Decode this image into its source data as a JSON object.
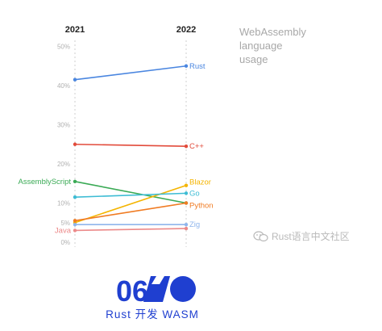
{
  "chart_data": {
    "type": "line",
    "title": "WebAssembly language usage",
    "title_lines": [
      "WebAssembly",
      "language",
      "usage"
    ],
    "x": [
      "2021",
      "2022"
    ],
    "ylim": [
      0,
      50
    ],
    "yticks": [
      "0%",
      "5%",
      "10%",
      "20%",
      "30%",
      "40%",
      "50%"
    ],
    "grid": false,
    "series": [
      {
        "name": "Rust",
        "values": [
          41.5,
          45
        ],
        "color": "#4a86e0",
        "label_side": "right"
      },
      {
        "name": "C++",
        "values": [
          25,
          24.5
        ],
        "color": "#e24b3b",
        "label_side": "right"
      },
      {
        "name": "AssemblyScript",
        "values": [
          15.5,
          10
        ],
        "color": "#3aaa55",
        "label_side": "left"
      },
      {
        "name": "Blazor",
        "values": [
          5,
          14.5
        ],
        "color": "#f4b400",
        "label_side": "right"
      },
      {
        "name": "Go",
        "values": [
          11.5,
          12.5
        ],
        "color": "#3dbcd4",
        "label_side": "right"
      },
      {
        "name": "Python",
        "values": [
          5.5,
          10
        ],
        "color": "#f07b22",
        "label_side": "right"
      },
      {
        "name": "Zig",
        "values": [
          4.5,
          4.5
        ],
        "color": "#8fb5ec",
        "label_side": "right"
      },
      {
        "name": "Java",
        "values": [
          3,
          3.5
        ],
        "color": "#ec8a8a",
        "label_side": "left"
      }
    ]
  },
  "watermark": {
    "text": "Rust语言中文社区",
    "icon": "wechat-icon"
  },
  "logo": {
    "number": "06",
    "subtitle": "Rust 开发 WASM",
    "color": "#1f3fd0"
  }
}
